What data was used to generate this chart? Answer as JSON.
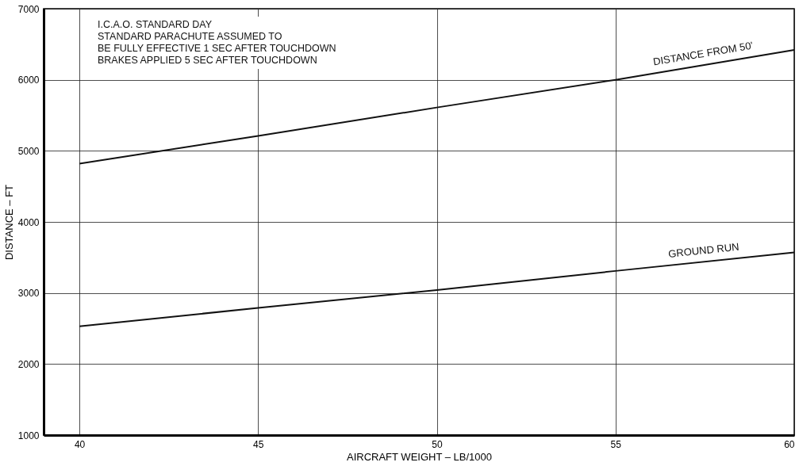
{
  "chart_data": {
    "type": "line",
    "xlabel": "AIRCRAFT WEIGHT – LB/1000",
    "ylabel": "DISTANCE – FT",
    "x": [
      40,
      45,
      50,
      55,
      60
    ],
    "series": [
      {
        "name": "DISTANCE FROM 50'",
        "color": "#111111",
        "values": [
          4820,
          5210,
          5610,
          6000,
          6420
        ]
      },
      {
        "name": "GROUND RUN",
        "color": "#111111",
        "values": [
          2530,
          2790,
          3040,
          3310,
          3570
        ]
      }
    ],
    "xlim": [
      39,
      60
    ],
    "xticks": [
      40,
      45,
      50,
      55,
      60
    ],
    "ylim": [
      1000,
      7000
    ],
    "yticks": [
      1000,
      2000,
      3000,
      4000,
      5000,
      6000,
      7000
    ],
    "grid": true,
    "marker": "none",
    "line_style": "solid",
    "annotations": [
      "I.C.A.O. STANDARD DAY",
      "STANDARD PARACHUTE ASSUMED TO",
      "BE FULLY EFFECTIVE 1 SEC AFTER TOUCHDOWN",
      "BRAKES APPLIED 5 SEC AFTER TOUCHDOWN"
    ]
  }
}
